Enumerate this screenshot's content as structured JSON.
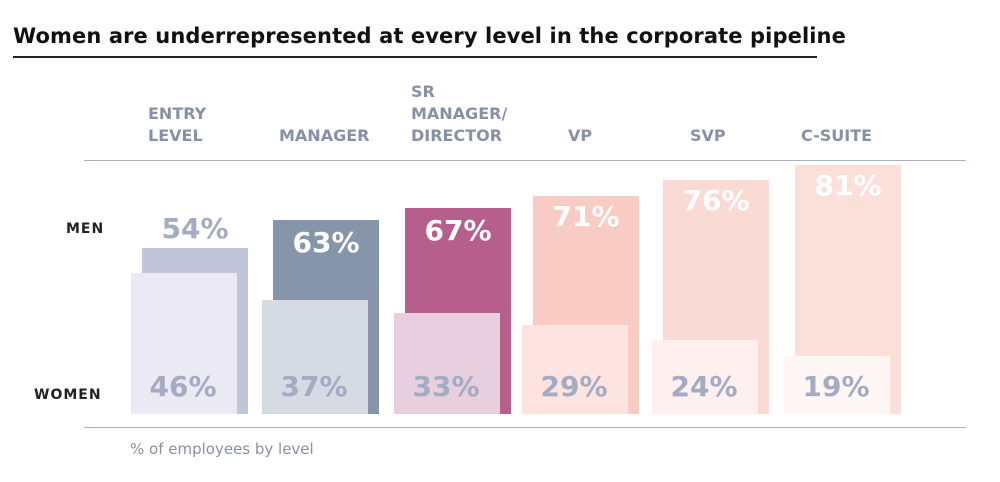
{
  "chart_data": {
    "type": "bar",
    "title": "Women are underrepresented at every level in the corporate pipeline",
    "caption": "% of employees by level",
    "categories": [
      "ENTRY\nLEVEL",
      "MANAGER",
      "SR\nMANAGER/\nDIRECTOR",
      "VP",
      "SVP",
      "C-SUITE"
    ],
    "row_labels": {
      "men": "MEN",
      "women": "WOMEN"
    },
    "series": [
      {
        "name": "MEN",
        "values": [
          54,
          63,
          67,
          71,
          76,
          81
        ],
        "labels": [
          "54%",
          "63%",
          "67%",
          "71%",
          "76%",
          "81%"
        ],
        "colors": [
          "#c1c5da",
          "#8795ab",
          "#b65f8c",
          "#f9cbc5",
          "#fadad5",
          "#fbe0d9"
        ]
      },
      {
        "name": "WOMEN",
        "values": [
          46,
          37,
          33,
          29,
          24,
          19
        ],
        "labels": [
          "46%",
          "37%",
          "33%",
          "29%",
          "24%",
          "19%"
        ],
        "colors": [
          "#ebe9f4",
          "#d6dbe3",
          "#e8cfdd",
          "#fde4e0",
          "#fdf0ee",
          "#fdf6f4"
        ]
      }
    ],
    "label_colors": {
      "men": [
        "#a4abc3",
        "#ffffff",
        "#ffffff",
        "#ffffff",
        "#ffffff",
        "#ffffff"
      ],
      "women": [
        "#a4abc3",
        "#a4abc3",
        "#a4abc3",
        "#a4abc3",
        "#a4abc3",
        "#a4abc3"
      ]
    }
  }
}
